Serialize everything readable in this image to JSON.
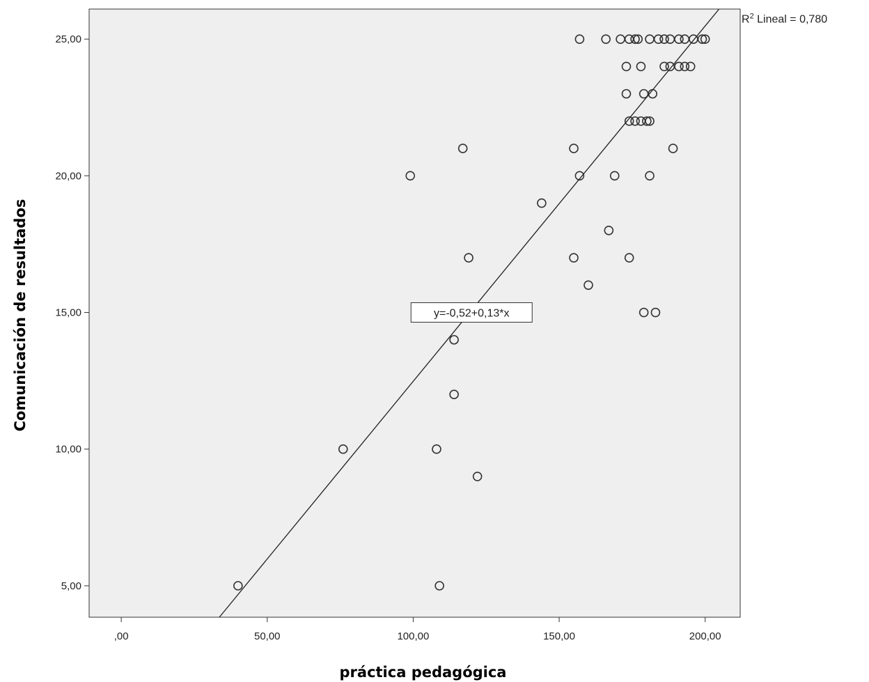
{
  "chart_data": {
    "type": "scatter",
    "xlabel": "práctica pedagógica",
    "ylabel": "Comunicación de resultados",
    "xlim": [
      -11,
      212
    ],
    "ylim": [
      3.85,
      26.1
    ],
    "x_ticks": [
      0,
      50,
      100,
      150,
      200
    ],
    "x_tick_labels": [
      ",00",
      "50,00",
      "100,00",
      "150,00",
      "200,00"
    ],
    "y_ticks": [
      5,
      10,
      15,
      20,
      25
    ],
    "y_tick_labels": [
      "5,00",
      "10,00",
      "15,00",
      "20,00",
      "25,00"
    ],
    "grid": false,
    "plot_background": "#efefef",
    "marker_color": "#333333",
    "fit_line": {
      "intercept": -0.52,
      "slope": 0.13,
      "equation_label": "y=-0,52+0,13*x",
      "r2_label": "R",
      "r2_superscript": "2",
      "r2_text": " Lineal = 0,780"
    },
    "points": [
      [
        40,
        5
      ],
      [
        109,
        5
      ],
      [
        122,
        9
      ],
      [
        76,
        10
      ],
      [
        108,
        10
      ],
      [
        114,
        12
      ],
      [
        114,
        14
      ],
      [
        179,
        15
      ],
      [
        183,
        15
      ],
      [
        160,
        16
      ],
      [
        119,
        17
      ],
      [
        155,
        17
      ],
      [
        174,
        17
      ],
      [
        167,
        18
      ],
      [
        144,
        19
      ],
      [
        99,
        20
      ],
      [
        157,
        20
      ],
      [
        169,
        20
      ],
      [
        181,
        20
      ],
      [
        117,
        21
      ],
      [
        155,
        21
      ],
      [
        189,
        21
      ],
      [
        174,
        22
      ],
      [
        176,
        22
      ],
      [
        178,
        22
      ],
      [
        180,
        22
      ],
      [
        181,
        22
      ],
      [
        173,
        23
      ],
      [
        179,
        23
      ],
      [
        182,
        23
      ],
      [
        173,
        24
      ],
      [
        178,
        24
      ],
      [
        186,
        24
      ],
      [
        188,
        24
      ],
      [
        191,
        24
      ],
      [
        193,
        24
      ],
      [
        195,
        24
      ],
      [
        157,
        25
      ],
      [
        166,
        25
      ],
      [
        171,
        25
      ],
      [
        174,
        25
      ],
      [
        176,
        25
      ],
      [
        177,
        25
      ],
      [
        181,
        25
      ],
      [
        184,
        25
      ],
      [
        186,
        25
      ],
      [
        188,
        25
      ],
      [
        191,
        25
      ],
      [
        193,
        25
      ],
      [
        196,
        25
      ],
      [
        199,
        25
      ],
      [
        200,
        25
      ]
    ]
  }
}
